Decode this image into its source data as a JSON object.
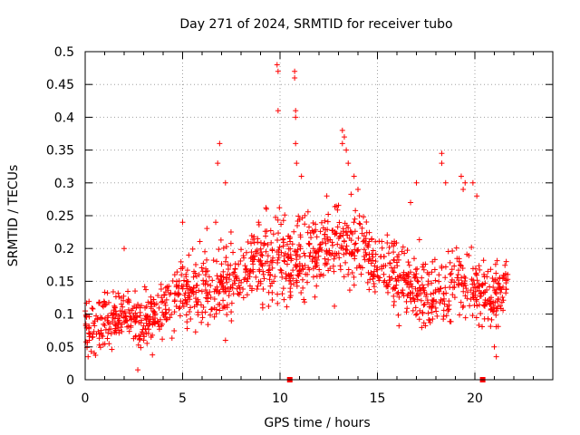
{
  "chart_data": {
    "type": "scatter",
    "title": "Day 271 of 2024, SRMTID for receiver tubo",
    "xlabel": "GPS time / hours",
    "ylabel": "SRMTID / TECUs",
    "xlim": [
      0,
      24
    ],
    "ylim": [
      0,
      0.5
    ],
    "xticks": [
      0,
      5,
      10,
      15,
      20
    ],
    "xtick_labels": [
      "0",
      "5",
      "10",
      "15",
      "20"
    ],
    "yticks": [
      0,
      0.05,
      0.1,
      0.15,
      0.2,
      0.25,
      0.3,
      0.35,
      0.4,
      0.45,
      0.5
    ],
    "ytick_labels": [
      "0",
      "0.05",
      "0.1",
      "0.15",
      "0.2",
      "0.25",
      "0.3",
      "0.35",
      "0.4",
      "0.45",
      "0.5"
    ],
    "grid": true,
    "marker": "+",
    "color": "#ff0000",
    "series": [
      {
        "name": "SRMTID",
        "envelope_profile": [
          [
            0.0,
            0.08,
            0.04
          ],
          [
            1.0,
            0.09,
            0.04
          ],
          [
            2.0,
            0.1,
            0.04
          ],
          [
            3.0,
            0.09,
            0.04
          ],
          [
            4.0,
            0.11,
            0.04
          ],
          [
            5.0,
            0.14,
            0.05
          ],
          [
            6.0,
            0.13,
            0.05
          ],
          [
            7.0,
            0.14,
            0.06
          ],
          [
            8.0,
            0.16,
            0.05
          ],
          [
            9.0,
            0.18,
            0.05
          ],
          [
            10.0,
            0.17,
            0.07
          ],
          [
            11.0,
            0.19,
            0.06
          ],
          [
            12.0,
            0.2,
            0.05
          ],
          [
            13.0,
            0.21,
            0.06
          ],
          [
            14.0,
            0.21,
            0.05
          ],
          [
            15.0,
            0.17,
            0.05
          ],
          [
            16.0,
            0.16,
            0.05
          ],
          [
            17.0,
            0.14,
            0.05
          ],
          [
            18.0,
            0.12,
            0.05
          ],
          [
            19.0,
            0.15,
            0.06
          ],
          [
            20.0,
            0.14,
            0.05
          ],
          [
            21.0,
            0.12,
            0.04
          ],
          [
            21.7,
            0.15,
            0.04
          ]
        ],
        "spikes": [
          [
            6.9,
            0.36
          ],
          [
            6.8,
            0.33
          ],
          [
            9.85,
            0.48
          ],
          [
            9.9,
            0.47
          ],
          [
            9.9,
            0.41
          ],
          [
            10.75,
            0.47
          ],
          [
            10.75,
            0.46
          ],
          [
            10.8,
            0.41
          ],
          [
            10.8,
            0.4
          ],
          [
            10.8,
            0.36
          ],
          [
            10.85,
            0.33
          ],
          [
            11.1,
            0.31
          ],
          [
            13.2,
            0.38
          ],
          [
            13.3,
            0.37
          ],
          [
            13.2,
            0.36
          ],
          [
            13.4,
            0.35
          ],
          [
            13.5,
            0.33
          ],
          [
            13.8,
            0.31
          ],
          [
            14.0,
            0.29
          ],
          [
            18.3,
            0.345
          ],
          [
            18.3,
            0.33
          ],
          [
            18.5,
            0.3
          ],
          [
            19.3,
            0.31
          ],
          [
            19.5,
            0.3
          ],
          [
            19.4,
            0.29
          ],
          [
            19.9,
            0.3
          ],
          [
            20.1,
            0.28
          ],
          [
            2.7,
            0.015
          ],
          [
            21.1,
            0.035
          ],
          [
            21.0,
            0.05
          ],
          [
            0.15,
            0.035
          ],
          [
            5.0,
            0.24
          ],
          [
            2.0,
            0.2
          ],
          [
            6.7,
            0.24
          ],
          [
            7.2,
            0.3
          ],
          [
            16.7,
            0.27
          ],
          [
            17.0,
            0.3
          ],
          [
            8.9,
            0.24
          ],
          [
            9.3,
            0.26
          ],
          [
            12.4,
            0.28
          ]
        ],
        "point_count": 1400,
        "x_range": [
          0.0,
          21.7
        ]
      }
    ],
    "extra_markers": [
      {
        "x": 10.5,
        "y": 0,
        "shape": "square"
      },
      {
        "x": 20.4,
        "y": 0,
        "shape": "square"
      }
    ]
  }
}
